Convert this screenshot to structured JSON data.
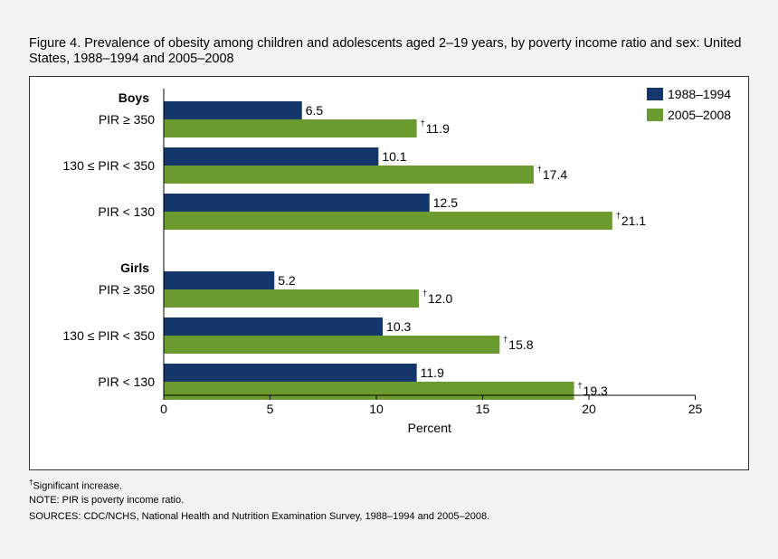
{
  "title": "Figure 4. Prevalence of obesity among children and adolescents aged 2–19 years, by poverty income ratio and sex: United States, 1988–1994 and 2005–2008",
  "footnotes": {
    "dagger_mark": "†",
    "dagger_text": "Significant increase.",
    "note": "NOTE: PIR is poverty income ratio.",
    "sources": "SOURCES: CDC/NCHS, National Health and Nutrition Examination Survey, 1988–1994 and 2005–2008."
  },
  "chart_data": {
    "type": "bar",
    "orientation": "horizontal",
    "xlabel": "Percent",
    "xlim": [
      0,
      25
    ],
    "xticks": [
      0,
      5,
      10,
      15,
      20,
      25
    ],
    "grid": false,
    "legend_position": "top-right",
    "significance_mark": "†",
    "series": [
      {
        "name": "1988–1994",
        "color": "#14366b"
      },
      {
        "name": "2005–2008",
        "color": "#6b9b2e"
      }
    ],
    "groups": [
      {
        "label": "Boys",
        "categories": [
          {
            "label": "PIR ≥ 350",
            "values": [
              6.5,
              11.9
            ],
            "significant": [
              false,
              true
            ]
          },
          {
            "label": "130 ≤ PIR < 350",
            "values": [
              10.1,
              17.4
            ],
            "significant": [
              false,
              true
            ]
          },
          {
            "label": "PIR < 130",
            "values": [
              12.5,
              21.1
            ],
            "significant": [
              false,
              true
            ]
          }
        ]
      },
      {
        "label": "Girls",
        "categories": [
          {
            "label": "PIR ≥ 350",
            "values": [
              5.2,
              12.0
            ],
            "significant": [
              false,
              true
            ]
          },
          {
            "label": "130 ≤ PIR < 350",
            "values": [
              10.3,
              15.8
            ],
            "significant": [
              false,
              true
            ]
          },
          {
            "label": "PIR < 130",
            "values": [
              11.9,
              19.3
            ],
            "significant": [
              false,
              true
            ]
          }
        ]
      }
    ]
  }
}
